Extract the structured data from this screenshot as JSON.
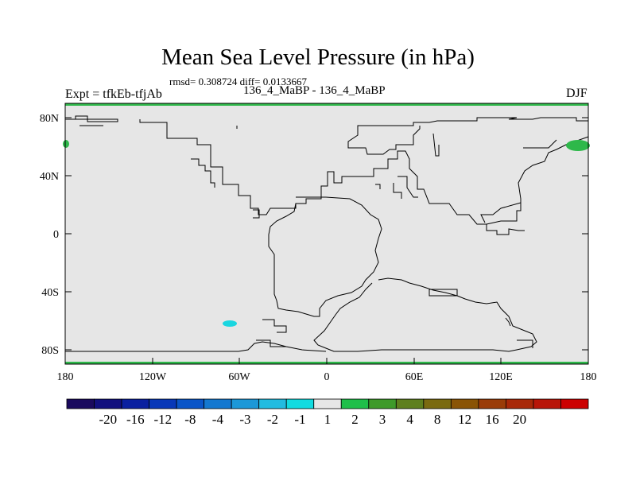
{
  "title": "Mean Sea Level Pressure (in hPa)",
  "stats": "rmsd= 0.308724 diff= 0.0133667",
  "experiment": "Expt = tfkEb-tfjAb",
  "subtitle": "136_4_MaBP - 136_4_MaBP",
  "season": "DJF",
  "lat_ticks": [
    "80N",
    "40N",
    "0",
    "40S",
    "80S"
  ],
  "lon_ticks": [
    "180",
    "120W",
    "60W",
    "0",
    "60E",
    "120E",
    "180"
  ],
  "colorbar": {
    "colors": [
      "#1a0a5e",
      "#12107e",
      "#0a20a0",
      "#0838b8",
      "#0a55c8",
      "#1478d0",
      "#1c98d8",
      "#22bce0",
      "#12dbe0",
      "#e6e6e6",
      "#1fbf4a",
      "#3e9a2a",
      "#5e7f1e",
      "#7a6a10",
      "#8a5405",
      "#9a3c08",
      "#a82808",
      "#b81508",
      "#cc0000"
    ],
    "labels": [
      "-20",
      "-16",
      "-12",
      "-8",
      "-4",
      "-3",
      "-2",
      "-1",
      "1",
      "2",
      "3",
      "4",
      "8",
      "12",
      "16",
      "20"
    ]
  },
  "map": {
    "background_color": "#e6e6e6",
    "positive_color": "#2eb84a",
    "negative_color": "#1ad6e0"
  }
}
